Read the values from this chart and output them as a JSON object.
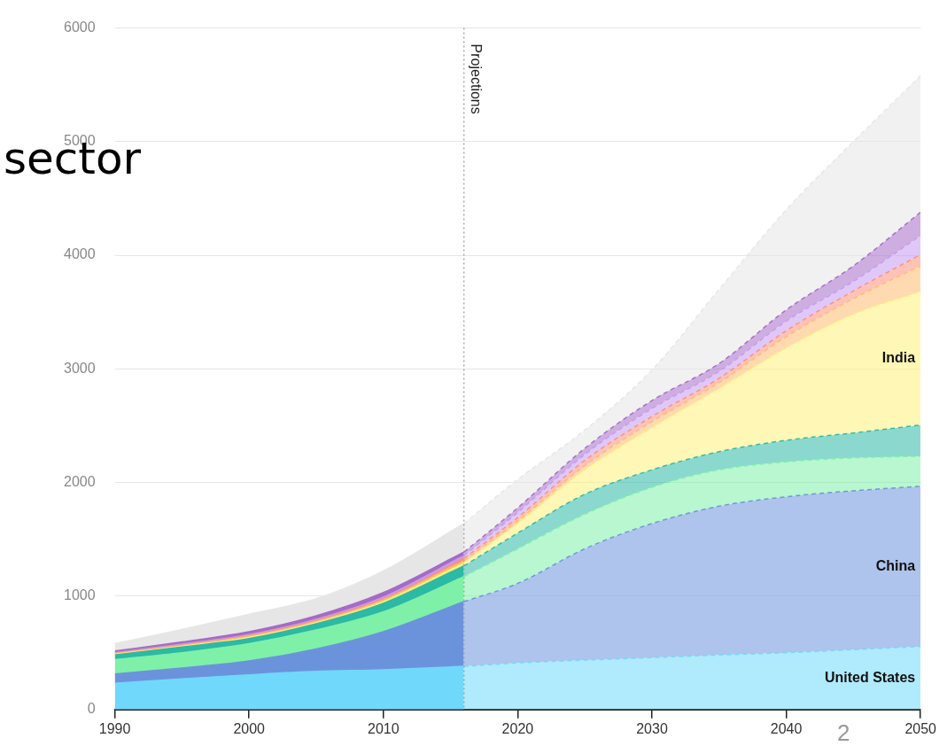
{
  "chart_data": {
    "type": "area",
    "title": "sector",
    "stacked": true,
    "x": [
      1990,
      1995,
      2000,
      2005,
      2010,
      2016,
      2020,
      2025,
      2030,
      2035,
      2040,
      2045,
      2050
    ],
    "series": [
      {
        "name": "United States",
        "color": "#70d8fb",
        "values": [
          230,
          270,
          305,
          335,
          350,
          380,
          410,
          435,
          457,
          480,
          500,
          527,
          555
        ]
      },
      {
        "name": "China",
        "color": "#6b93dc",
        "values": [
          82,
          95,
          122,
          198,
          335,
          570,
          700,
          980,
          1180,
          1310,
          1373,
          1399,
          1410
        ]
      },
      {
        "color": "#7ef0a8",
        "values": [
          128,
          135,
          153,
          167,
          175,
          220,
          305,
          305,
          320,
          320,
          307,
          289,
          265
        ]
      },
      {
        "color": "#2cb9a5",
        "values": [
          40,
          50,
          45,
          55,
          75,
          95,
          138,
          175,
          153,
          160,
          190,
          220,
          275
        ]
      },
      {
        "name": "India",
        "color": "#fff07a",
        "values": [
          6,
          6,
          10,
          10,
          15,
          25,
          84,
          215,
          370,
          555,
          813,
          1045,
          1173
        ]
      },
      {
        "color": "#ffbb70",
        "values": [
          6,
          7,
          10,
          12,
          15,
          20,
          23,
          37,
          55,
          53,
          99,
          137,
          228
        ]
      },
      {
        "color": "#ff8f7a",
        "values": [
          4,
          5,
          7,
          8,
          10,
          20,
          30,
          46,
          45,
          38,
          53,
          68,
          99
        ]
      },
      {
        "color": "#c59af0",
        "values": [
          4,
          7,
          8,
          10,
          15,
          25,
          45,
          53,
          70,
          61,
          84,
          84,
          168
        ]
      },
      {
        "color": "#a56bc8",
        "values": [
          15,
          20,
          25,
          30,
          40,
          31,
          40,
          54,
          70,
          69,
          99,
          137,
          205
        ]
      },
      {
        "color": "#e6e6e6",
        "values": [
          65,
          110,
          153,
          150,
          190,
          251,
          250,
          160,
          270,
          654,
          882,
          1094,
          1202
        ]
      }
    ],
    "xlim": [
      1990,
      2050
    ],
    "xticks": [
      1990,
      2000,
      2010,
      2020,
      2030,
      2040,
      2050
    ],
    "ylim": [
      0,
      6000
    ],
    "yticks": [
      0,
      1000,
      2000,
      3000,
      4000,
      5000,
      6000
    ],
    "grid": "y",
    "legend": false,
    "ref_lines": [
      {
        "axis": "x",
        "value": 2016,
        "label": "Projections",
        "line_style": "dotted",
        "color": "#999999"
      }
    ],
    "annotations": [
      "2"
    ]
  }
}
